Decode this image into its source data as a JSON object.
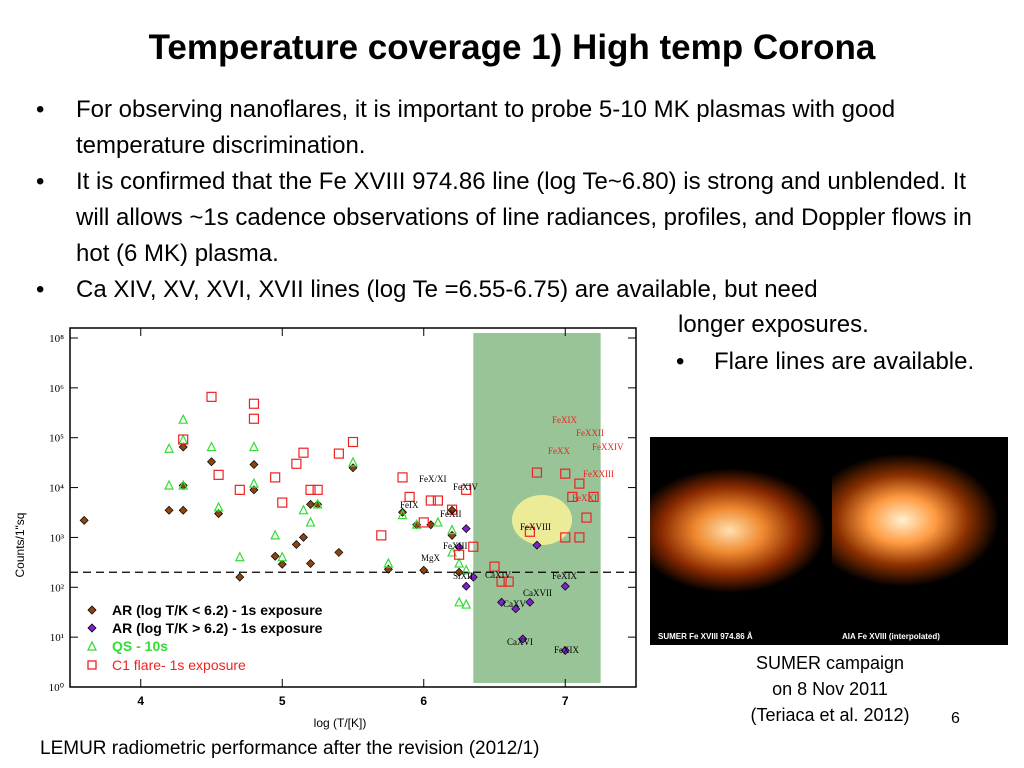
{
  "title": "Temperature coverage 1) High temp Corona",
  "bullets": [
    "For observing nanoflares, it is important to probe 5-10 MK plasmas with good temperature discrimination.",
    "It is confirmed that the Fe XVIII 974.86 line (log Te~6.80) is strong and unblended. It will allows ~1s cadence observations of line radiances, profiles, and Doppler flows in hot (6 MK) plasma.",
    "Ca XIV, XV, XVI, XVII lines (log Te =6.55-6.75) are available, but need"
  ],
  "bullet_continuation": "longer exposures.",
  "bullet_flare": "Flare lines are available.",
  "image_panel": {
    "left_caption": "SUMER Fe XVIII 974.86 Å",
    "right_caption": "AIA Fe XVIII (interpolated)"
  },
  "caption_right_lines": [
    "SUMER campaign",
    "on 8 Nov 2011",
    "(Teriaca et al. 2012)"
  ],
  "page_number": "6",
  "caption_bottom": "LEMUR radiometric performance after the revision (2012/1)",
  "colors": {
    "ar_low": "#8b4513",
    "ar_high": "#7b22c8",
    "qs": "#33dd33",
    "flare": "#ee2222",
    "highlight_band": "#98c498",
    "highlight_ellipse": "#ecec98"
  },
  "chart_data": {
    "type": "scatter",
    "xlabel": "log (T/[K])",
    "ylabel": "Counts/1\"sq",
    "xlim": [
      3.5,
      7.5
    ],
    "ylim": [
      1,
      100000000
    ],
    "log_y": true,
    "x_ticks": [
      "4",
      "5",
      "6",
      "7"
    ],
    "y_ticks": [
      "10⁰",
      "10¹",
      "10²",
      "10³",
      "10⁴",
      "10⁵",
      "10⁶",
      "10⁸"
    ],
    "threshold_y": 200,
    "legend": [
      "AR (log T/K < 6.2) - 1s exposure",
      "AR (log T/K > 6.2) - 1s exposure",
      "QS  -  10s",
      "C1 flare- 1s exposure"
    ],
    "series": [
      {
        "name": "AR (log T/K < 6.2) - 1s exposure",
        "marker": "diamond",
        "points": [
          [
            3.6,
            2200
          ],
          [
            4.2,
            3500
          ],
          [
            4.3,
            3500
          ],
          [
            4.3,
            11000
          ],
          [
            4.3,
            65000
          ],
          [
            4.5,
            33000
          ],
          [
            4.55,
            3000
          ],
          [
            4.7,
            160
          ],
          [
            4.8,
            29000
          ],
          [
            4.8,
            9000
          ],
          [
            4.95,
            420
          ],
          [
            5.0,
            290
          ],
          [
            5.1,
            720
          ],
          [
            5.15,
            1000
          ],
          [
            5.2,
            4600
          ],
          [
            5.25,
            4600
          ],
          [
            5.5,
            25000
          ],
          [
            5.2,
            300
          ],
          [
            5.4,
            500
          ],
          [
            5.75,
            230
          ],
          [
            5.85,
            3200
          ],
          [
            5.95,
            1800
          ],
          [
            6.05,
            1800
          ],
          [
            6.0,
            220
          ],
          [
            6.2,
            3500
          ],
          [
            6.2,
            1100
          ],
          [
            6.25,
            200
          ]
        ]
      },
      {
        "name": "AR (log T/K > 6.2) - 1s exposure",
        "marker": "diamond",
        "points": [
          [
            6.3,
            1500
          ],
          [
            6.25,
            640
          ],
          [
            6.3,
            105
          ],
          [
            6.35,
            160
          ],
          [
            6.55,
            50
          ],
          [
            6.65,
            37
          ],
          [
            6.75,
            50
          ],
          [
            6.8,
            700
          ],
          [
            7.0,
            105
          ],
          [
            6.7,
            9.2
          ],
          [
            7.0,
            5.4
          ]
        ]
      },
      {
        "name": "QS  -  10s",
        "marker": "triangle",
        "points": [
          [
            4.2,
            11000
          ],
          [
            4.3,
            230000
          ],
          [
            4.3,
            90000
          ],
          [
            4.2,
            60000
          ],
          [
            4.3,
            11000
          ],
          [
            4.5,
            65000
          ],
          [
            4.55,
            4000
          ],
          [
            4.7,
            400
          ],
          [
            4.8,
            65000
          ],
          [
            4.8,
            12000
          ],
          [
            4.95,
            1100
          ],
          [
            5.0,
            400
          ],
          [
            5.15,
            3500
          ],
          [
            5.2,
            2000
          ],
          [
            5.25,
            4600
          ],
          [
            5.5,
            32000
          ],
          [
            5.75,
            300
          ],
          [
            5.85,
            2800
          ],
          [
            5.95,
            1800
          ],
          [
            6.1,
            2000
          ],
          [
            6.2,
            1400
          ],
          [
            6.2,
            500
          ],
          [
            6.25,
            300
          ],
          [
            6.3,
            220
          ],
          [
            6.25,
            50
          ],
          [
            6.3,
            45
          ]
        ]
      },
      {
        "name": "C1 flare- 1s exposure",
        "marker": "square",
        "points": [
          [
            4.3,
            92000
          ],
          [
            4.5,
            660000
          ],
          [
            4.8,
            480000
          ],
          [
            4.8,
            240000
          ],
          [
            4.55,
            18000
          ],
          [
            4.7,
            9000
          ],
          [
            4.95,
            16000
          ],
          [
            5.0,
            5000
          ],
          [
            5.1,
            30000
          ],
          [
            5.15,
            50000
          ],
          [
            5.2,
            9000
          ],
          [
            5.25,
            9000
          ],
          [
            5.4,
            48000
          ],
          [
            5.5,
            82000
          ],
          [
            5.7,
            1100
          ],
          [
            5.85,
            16000
          ],
          [
            5.9,
            6500
          ],
          [
            6.05,
            5500
          ],
          [
            6.1,
            5500
          ],
          [
            6.0,
            2000
          ],
          [
            6.2,
            3600
          ],
          [
            6.3,
            9000
          ],
          [
            6.35,
            650
          ],
          [
            6.25,
            450
          ],
          [
            6.5,
            260
          ],
          [
            6.55,
            130
          ],
          [
            6.6,
            130
          ],
          [
            6.75,
            1300
          ],
          [
            6.8,
            20000
          ],
          [
            7.0,
            19000
          ],
          [
            7.05,
            6500
          ],
          [
            7.1,
            12000
          ],
          [
            7.0,
            1000
          ],
          [
            7.1,
            1000
          ],
          [
            7.15,
            2500
          ],
          [
            7.2,
            6500
          ]
        ]
      }
    ],
    "point_labels": [
      "FeXIX",
      "FeXXII",
      "FeXX",
      "FeXXIV",
      "FeXXIII",
      "FeXXI",
      "FeX/XI",
      "FeXIV",
      "FeIX",
      "FeXII",
      "FeXVIII",
      "FeXIII",
      "MgX",
      "SiXII",
      "CaXIV",
      "CaXVII",
      "CaXV",
      "FeXIX",
      "CaXVI",
      "FeXIX"
    ]
  }
}
